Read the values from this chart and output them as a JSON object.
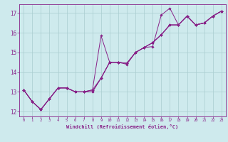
{
  "xlabel": "Windchill (Refroidissement éolien,°C)",
  "background_color": "#ceeaed",
  "grid_color": "#aacdd0",
  "line_color": "#882288",
  "xlim": [
    -0.5,
    23.5
  ],
  "ylim": [
    11.75,
    17.45
  ],
  "xticks": [
    0,
    1,
    2,
    3,
    4,
    5,
    6,
    7,
    8,
    9,
    10,
    11,
    12,
    13,
    14,
    15,
    16,
    17,
    18,
    19,
    20,
    21,
    22,
    23
  ],
  "yticks": [
    12,
    13,
    14,
    15,
    16,
    17
  ],
  "series": [
    [
      13.1,
      12.5,
      12.1,
      12.65,
      13.2,
      13.2,
      13.0,
      13.0,
      13.1,
      15.85,
      14.5,
      14.5,
      14.4,
      15.0,
      15.25,
      15.3,
      16.9,
      17.25,
      16.4,
      16.85,
      16.4,
      16.5,
      16.85,
      17.1
    ],
    [
      13.1,
      12.5,
      12.1,
      12.65,
      13.2,
      13.2,
      13.0,
      13.0,
      13.0,
      13.7,
      14.5,
      14.5,
      14.45,
      15.0,
      15.25,
      15.5,
      15.9,
      16.4,
      16.4,
      16.85,
      16.4,
      16.5,
      16.85,
      17.1
    ],
    [
      13.1,
      12.5,
      12.1,
      12.65,
      13.2,
      13.2,
      13.0,
      13.0,
      13.0,
      13.7,
      14.5,
      14.5,
      14.45,
      15.0,
      15.25,
      15.5,
      15.9,
      16.4,
      16.4,
      16.85,
      16.4,
      16.5,
      16.85,
      17.1
    ],
    [
      13.1,
      12.5,
      12.1,
      12.65,
      13.2,
      13.2,
      13.0,
      13.0,
      13.1,
      13.7,
      14.5,
      14.5,
      14.45,
      15.0,
      15.25,
      15.5,
      15.9,
      16.4,
      16.4,
      16.85,
      16.4,
      16.5,
      16.85,
      17.1
    ]
  ]
}
